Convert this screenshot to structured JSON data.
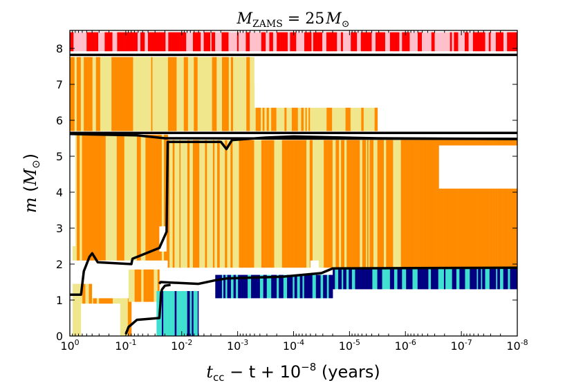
{
  "chart_data": {
    "type": "kippenhahn",
    "title": "M_ZAMS = 25 M_⊙",
    "title_parts": {
      "m": "M",
      "sub": "ZAMS",
      "eq": " = 25",
      "m2": "M",
      "sun": "⊙"
    },
    "xlabel": "t_cc − t + 10^−8 (years)",
    "xlabel_parts": {
      "t": "t",
      "cc": "cc",
      "rest": " − t + 10",
      "exp": "−8",
      "units": " (years)"
    },
    "ylabel": "m (M_⊙)",
    "ylabel_parts": {
      "m": "m",
      "open": " (",
      "M": "M",
      "sun": "⊙",
      "close": ")"
    },
    "xscale": "log",
    "x_decades_from_1": [
      0,
      1,
      2,
      3,
      4,
      5,
      6,
      7,
      8
    ],
    "xlim_log10": [
      0,
      -8
    ],
    "ylim": [
      0,
      8.5
    ],
    "x_tick_labels": [
      {
        "base": "10",
        "exp": "0"
      },
      {
        "base": "10",
        "exp": "-1"
      },
      {
        "base": "10",
        "exp": "-2"
      },
      {
        "base": "10",
        "exp": "-3"
      },
      {
        "base": "10",
        "exp": "-4"
      },
      {
        "base": "10",
        "exp": "-5"
      },
      {
        "base": "10",
        "exp": "-6"
      },
      {
        "base": "10",
        "exp": "-7"
      },
      {
        "base": "10",
        "exp": "-8"
      }
    ],
    "y_ticks": [
      0,
      1,
      2,
      3,
      4,
      5,
      6,
      7,
      8
    ],
    "y_tick_labels": [
      "0",
      "1",
      "2",
      "3",
      "4",
      "5",
      "6",
      "7",
      "8"
    ],
    "colors": {
      "convective_orange": "#ff8c00",
      "convective_khaki": "#f0e68c",
      "envelope_red": "#ff0000",
      "envelope_pink": "#ffc0cb",
      "core_navy": "#000080",
      "core_turquoise": "#40e0d0",
      "boundary_line": "#000000"
    },
    "boundary_lines": [
      {
        "name": "total-mass",
        "points": [
          [
            0,
            7.82
          ],
          [
            8,
            7.82
          ]
        ]
      },
      {
        "name": "he-core-mass",
        "points": [
          [
            0,
            5.65
          ],
          [
            8,
            5.65
          ]
        ]
      },
      {
        "name": "co-core-boundary",
        "points": [
          [
            0,
            5.62
          ],
          [
            1.2,
            5.58
          ],
          [
            1.7,
            5.5
          ],
          [
            8,
            5.48
          ]
        ]
      },
      {
        "name": "o-core-boundary",
        "points": [
          [
            0,
            1.15
          ],
          [
            0.2,
            1.15
          ],
          [
            0.25,
            1.8
          ],
          [
            0.35,
            2.2
          ],
          [
            0.4,
            2.3
          ],
          [
            0.5,
            2.05
          ],
          [
            1.1,
            2.0
          ],
          [
            1.12,
            2.15
          ],
          [
            1.6,
            2.45
          ],
          [
            1.73,
            2.9
          ],
          [
            1.75,
            5.4
          ],
          [
            2.35,
            5.4
          ],
          [
            2.7,
            5.4
          ],
          [
            2.8,
            5.2
          ],
          [
            2.9,
            5.45
          ],
          [
            3.5,
            5.52
          ],
          [
            4.0,
            5.55
          ],
          [
            5.5,
            5.5
          ],
          [
            8,
            5.48
          ]
        ]
      },
      {
        "name": "si-core-boundary",
        "points": [
          [
            1.6,
            1.45
          ],
          [
            1.62,
            1.5
          ],
          [
            2.3,
            1.45
          ],
          [
            2.6,
            1.55
          ],
          [
            2.8,
            1.6
          ],
          [
            3.8,
            1.65
          ],
          [
            4.5,
            1.75
          ],
          [
            4.7,
            1.88
          ],
          [
            8,
            1.9
          ]
        ]
      },
      {
        "name": "fe-core-boundary",
        "points": [
          [
            1.0,
            0.05
          ],
          [
            1.05,
            0.25
          ],
          [
            1.2,
            0.45
          ],
          [
            1.6,
            0.5
          ],
          [
            1.62,
            0.9
          ],
          [
            1.63,
            1.2
          ],
          [
            1.65,
            1.3
          ],
          [
            1.7,
            1.4
          ],
          [
            1.8,
            1.42
          ]
        ]
      }
    ]
  }
}
